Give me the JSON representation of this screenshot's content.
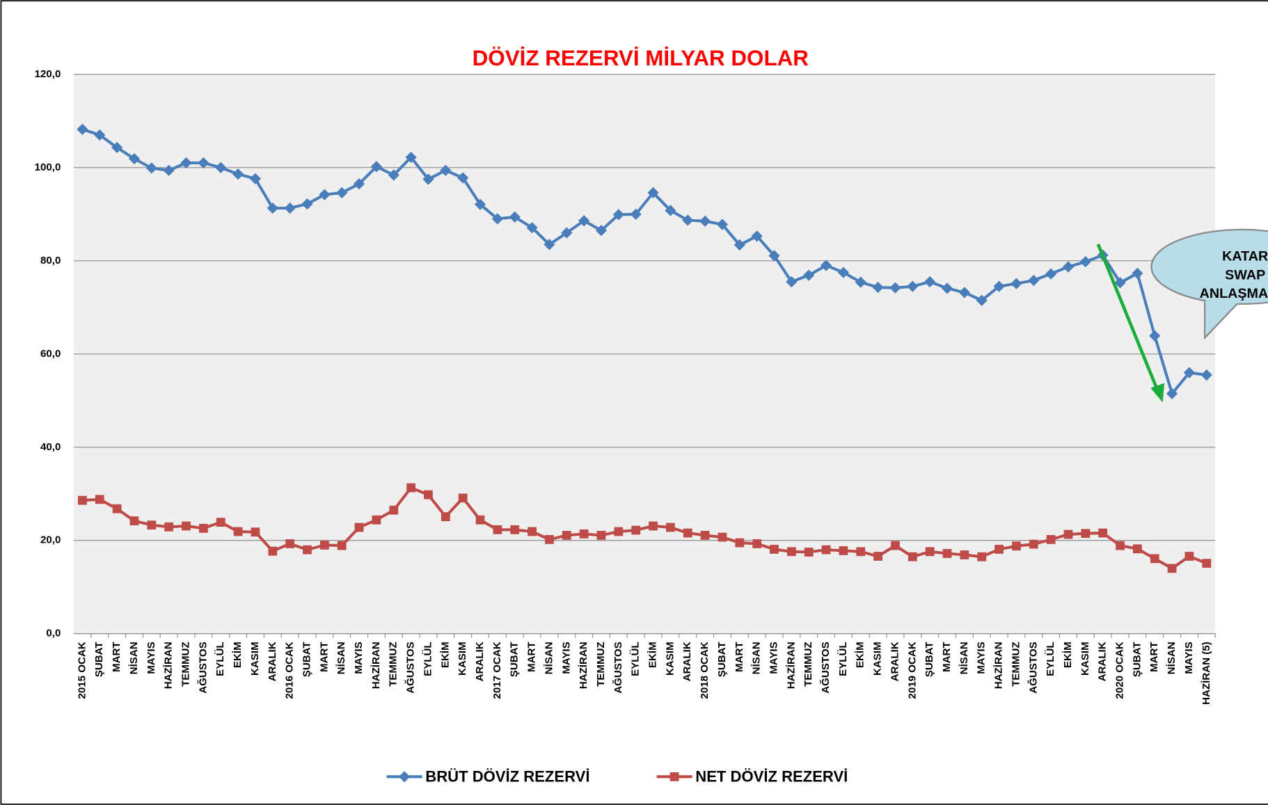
{
  "chart_data": {
    "type": "line",
    "title": "DÖVİZ REZERVİ MİLYAR DOLAR",
    "categories": [
      "2015 OCAK",
      "ŞUBAT",
      "MART",
      "NİSAN",
      "MAYIS",
      "HAZİRAN",
      "TEMMUZ",
      "AĞUSTOS",
      "EYLÜL",
      "EKİM",
      "KASIM",
      "ARALIK",
      "2016 OCAK",
      "ŞUBAT",
      "MART",
      "NİSAN",
      "MAYIS",
      "HAZİRAN",
      "TEMMUZ",
      "AĞUSTOS",
      "EYLÜL",
      "EKİM",
      "KASIM",
      "ARALIK",
      "2017 OCAK",
      "ŞUBAT",
      "MART",
      "NİSAN",
      "MAYIS",
      "HAZİRAN",
      "TEMMUZ",
      "AĞUSTOS",
      "EYLÜL",
      "EKİM",
      "KASIM",
      "ARALIK",
      "2018 OCAK",
      "ŞUBAT",
      "MART",
      "NİSAN",
      "MAYIS",
      "HAZİRAN",
      "TEMMUZ",
      "AĞUSTOS",
      "EYLÜL",
      "EKİM",
      "KASIM",
      "ARALIK",
      "2019 OCAK",
      "ŞUBAT",
      "MART",
      "NİSAN",
      "MAYIS",
      "HAZİRAN",
      "TEMMUZ",
      "AĞUSTOS",
      "EYLÜL",
      "EKİM",
      "KASIM",
      "ARALIK",
      "2020 OCAK",
      "ŞUBAT",
      "MART",
      "NİSAN",
      "MAYIS",
      "HAZİRAN (5)"
    ],
    "series": [
      {
        "name": "BRÜT DÖVİZ REZERVİ",
        "color": "#4a7ebb",
        "marker": "diamond",
        "values": [
          108.2,
          107.0,
          104.3,
          101.9,
          99.9,
          99.4,
          101.0,
          101.0,
          100.0,
          98.6,
          97.6,
          91.3,
          91.3,
          92.2,
          94.2,
          94.6,
          96.5,
          100.2,
          98.4,
          102.2,
          97.5,
          99.4,
          97.8,
          92.1,
          89.0,
          89.4,
          87.1,
          83.5,
          86.0,
          88.6,
          86.5,
          89.9,
          90.0,
          94.6,
          90.8,
          88.7,
          88.5,
          87.8,
          83.4,
          85.3,
          81.1,
          75.5,
          76.9,
          79.0,
          77.5,
          75.4,
          74.3,
          74.2,
          74.5,
          75.5,
          74.1,
          73.2,
          71.5,
          74.5,
          75.1,
          75.8,
          77.2,
          78.7,
          79.8,
          81.2,
          75.3,
          77.3,
          63.9,
          51.5,
          56.0,
          55.5
        ]
      },
      {
        "name": "NET DÖVİZ REZERVİ",
        "color": "#be4b48",
        "marker": "square",
        "values": [
          28.6,
          28.8,
          26.8,
          24.2,
          23.3,
          22.9,
          23.1,
          22.6,
          23.9,
          21.9,
          21.8,
          17.7,
          19.3,
          18.0,
          19.0,
          18.9,
          22.8,
          24.4,
          26.5,
          31.3,
          29.8,
          25.1,
          29.1,
          24.4,
          22.3,
          22.3,
          21.9,
          20.2,
          21.1,
          21.4,
          21.1,
          21.9,
          22.2,
          23.1,
          22.8,
          21.6,
          21.1,
          20.7,
          19.5,
          19.3,
          18.1,
          17.6,
          17.5,
          18.0,
          17.8,
          17.6,
          16.6,
          18.9,
          16.5,
          17.6,
          17.2,
          16.9,
          16.5,
          18.1,
          18.8,
          19.2,
          20.2,
          21.3,
          21.5,
          21.6,
          18.9,
          18.2,
          16.1,
          14.0,
          16.6,
          15.1
        ]
      }
    ],
    "ylim": [
      0,
      120
    ],
    "yticks": [
      {
        "value": 0,
        "label": "0,0"
      },
      {
        "value": 20,
        "label": "20,0"
      },
      {
        "value": 40,
        "label": "40,0"
      },
      {
        "value": 60,
        "label": "60,0"
      },
      {
        "value": 80,
        "label": "80,0"
      },
      {
        "value": 100,
        "label": "100,0"
      },
      {
        "value": 120,
        "label": "120,0"
      }
    ],
    "grid": true,
    "legend": "bottom",
    "annotations": [
      "KATAR",
      "SWAP",
      "ANLAŞMASI"
    ]
  }
}
